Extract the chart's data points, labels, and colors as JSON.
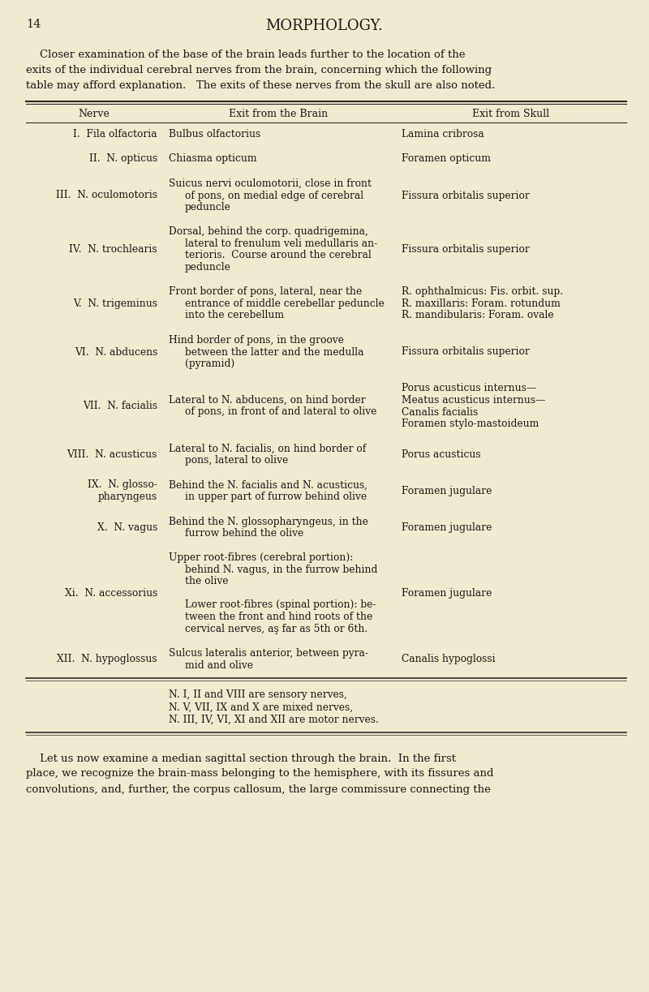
{
  "page_number": "14",
  "title": "MORPHOLOGY.",
  "background_color": "#f0ead0",
  "text_color": "#1a1a1a",
  "intro_lines": [
    "    Closer examination of the base of the brain leads further to the location of the",
    "exits of the individual cerebral nerves from the brain, concerning which the following",
    "table may afford explanation.   The exits of these nerves from the skull are also noted."
  ],
  "col_headers": [
    "Nerve",
    "Exit from the Brain",
    "Exit from Skull"
  ],
  "table_rows": [
    {
      "nerve_num": "I.",
      "nerve_name": "Fila olfactoria",
      "nerve_name2": "",
      "brain": [
        "Bulbus olfactorius"
      ],
      "skull": [
        "Lamina cribrosa"
      ]
    },
    {
      "nerve_num": "II.",
      "nerve_name": "N. opticus",
      "nerve_name2": "",
      "brain": [
        "Chiasma opticum"
      ],
      "skull": [
        "Foramen opticum"
      ]
    },
    {
      "nerve_num": "III.",
      "nerve_name": "N. oculomotoris",
      "nerve_name2": "",
      "brain": [
        "Suicus nervi oculomotorii, close in front",
        "of pons, on medial edge of cerebral",
        "peduncle"
      ],
      "skull": [
        "Fissura orbitalis superior"
      ]
    },
    {
      "nerve_num": "IV.",
      "nerve_name": "N. trochlearis",
      "nerve_name2": "",
      "brain": [
        "Dorsal, behind the corp. quadrigemina,",
        "lateral to frenulum veli medullaris an-",
        "terioris.  Course around the cerebral",
        "peduncle"
      ],
      "skull": [
        "Fissura orbitalis superior"
      ]
    },
    {
      "nerve_num": "V.",
      "nerve_name": "N. trigeminus",
      "nerve_name2": "",
      "brain": [
        "Front border of pons, lateral, near the",
        "entrance of middle cerebellar peduncle",
        "into the cerebellum"
      ],
      "skull": [
        "R. ophthalmicus: Fis. orbit. sup.",
        "R. maxillaris: Foram. rotundum",
        "R. mandibularis: Foram. ovale"
      ]
    },
    {
      "nerve_num": "VI.",
      "nerve_name": "N. abducens",
      "nerve_name2": "",
      "brain": [
        "Hind border of pons, in the groove",
        "between the latter and the medulla",
        "(pyramid)"
      ],
      "skull": [
        "Fissura orbitalis superior"
      ]
    },
    {
      "nerve_num": "VII.",
      "nerve_name": "N. facialis",
      "nerve_name2": "",
      "brain": [
        "Lateral to N. abducens, on hind border",
        "of pons, in front of and lateral to olive"
      ],
      "skull": [
        "Porus acusticus internus—",
        "Meatus acusticus internus—",
        "Canalis facialis",
        "Foramen stylo-mastoideum"
      ]
    },
    {
      "nerve_num": "VIII.",
      "nerve_name": "N. acusticus",
      "nerve_name2": "",
      "brain": [
        "Lateral to N. facialis, on hind border of",
        "pons, lateral to olive"
      ],
      "skull": [
        "Porus acusticus"
      ]
    },
    {
      "nerve_num": "IX.",
      "nerve_name": "N. glosso-",
      "nerve_name2": "pharyngeus",
      "brain": [
        "Behind the N. facialis and N. acusticus,",
        "in upper part of furrow behind olive"
      ],
      "skull": [
        "Foramen jugulare"
      ]
    },
    {
      "nerve_num": "X.",
      "nerve_name": "N. vagus",
      "nerve_name2": "",
      "brain": [
        "Behind the N. glossopharyngeus, in the",
        "furrow behind the olive"
      ],
      "skull": [
        "Foramen jugulare"
      ]
    },
    {
      "nerve_num": "Xi.",
      "nerve_name": "N. accessorius",
      "nerve_name2": "",
      "brain": [
        "Upper root-fibres (cerebral portion):",
        "behind N. vagus, in the furrow behind",
        "the olive",
        "",
        "Lower root-fibres (spinal portion): be-",
        "tween the front and hind roots of the",
        "cervical nerves, aş far as 5th or 6th."
      ],
      "skull": [
        "Foramen jugulare"
      ]
    },
    {
      "nerve_num": "XII.",
      "nerve_name": "N. hypoglossus",
      "nerve_name2": "",
      "brain": [
        "Sulcus lateralis anterior, between pyra-",
        "mid and olive"
      ],
      "skull": [
        "Canalis hypoglossi"
      ]
    }
  ],
  "footer_notes": [
    "N. I, II and VIII are sensory nerves,",
    "N. V, VII, IX and X are mixed nerves,",
    "N. III, IV, VI, XI and XII are motor nerves."
  ],
  "closing_lines": [
    "    Let us now examine a median sagittal section through the brain.  In the first",
    "place, we recognize the brain-mass belonging to the hemisphere, with its fissures and",
    "convolutions, and, further, the corpus callosum, the large commissure connecting the"
  ]
}
